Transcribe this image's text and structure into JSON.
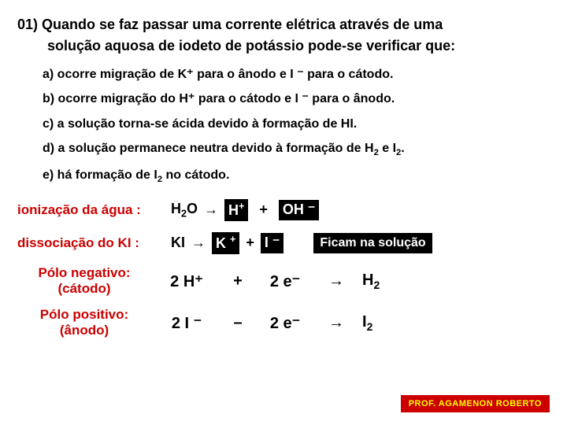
{
  "question": {
    "number_line1": "01) Quando se faz passar uma  corrente  elétrica  através de uma",
    "line2": "solução  aquosa de iodeto de potássio pode-se verificar que:"
  },
  "options": {
    "a": "a)  ocorre migração de K⁺ para o ânodo e I ⁻ para o cátodo.",
    "b": "b)  ocorre migração do H⁺ para o cátodo e I ⁻  para o ânodo.",
    "c": "c)  a solução torna-se ácida devido à formação de HI.",
    "d_prefix": "d)  a solução permanece neutra devido à formação de H",
    "d_mid": " e I",
    "d_end": ".",
    "e_prefix": "e)  há formação de I",
    "e_end": " no cátodo."
  },
  "explain": {
    "ioniz_label": "ionização da água :",
    "dissoc_label": "dissociação do KI :",
    "h2o": "H",
    "arrow": "→",
    "hplus": "H",
    "plus": "+",
    "oh": "OH ⁻",
    "ki": "KI",
    "kplus": "K ",
    "iminus": "I ⁻",
    "ficam": "Ficam na solução"
  },
  "poles": {
    "neg_l1": "Pólo negativo:",
    "neg_l2": "(cátodo)",
    "pos_l1": "Pólo positivo:",
    "pos_l2": "(ânodo)",
    "two_hplus": "2  H⁺",
    "plus": "+",
    "two_e": "2 e⁻",
    "arrow": "→",
    "h2": "H",
    "two_iminus": "2 I ⁻",
    "minus": "–",
    "i2": "I"
  },
  "footer": "PROF. AGAMENON ROBERTO",
  "colors": {
    "red": "#cc0000",
    "yellow": "#ffff00",
    "black": "#000000",
    "white": "#ffffff"
  }
}
